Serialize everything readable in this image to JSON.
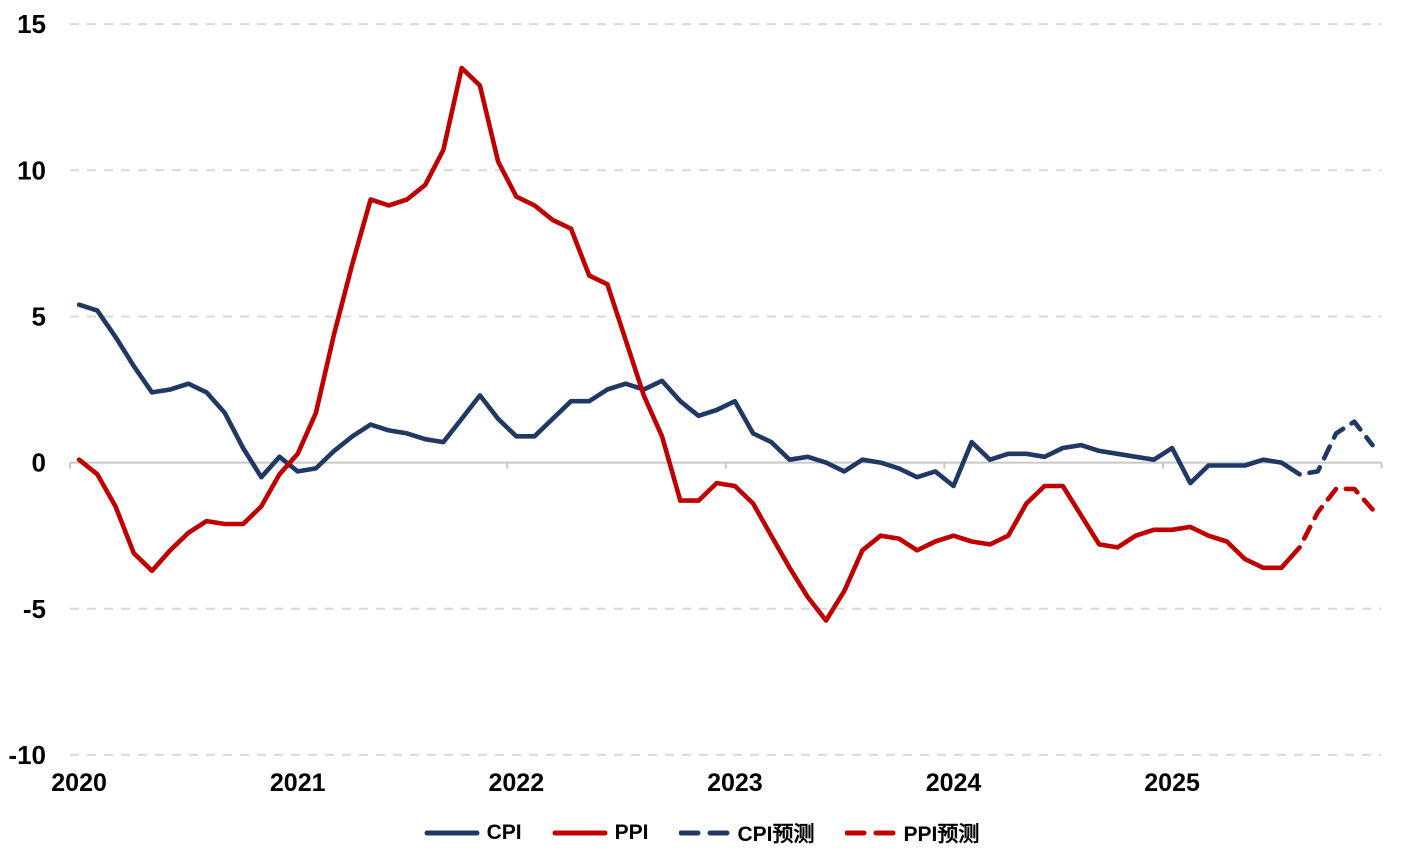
{
  "chart_data": {
    "type": "line",
    "title": "",
    "xlabel": "",
    "ylabel": "",
    "x_start": "2020-01",
    "x_end": "2025-12",
    "total_months": 72,
    "year_labels": [
      "2020",
      "2021",
      "2022",
      "2023",
      "2024",
      "2025"
    ],
    "y_ticks": [
      15,
      10,
      5,
      0,
      -5,
      -10
    ],
    "ylim": [
      -10,
      15
    ],
    "grid": "horizontal-dashed",
    "legend_position": "bottom-center",
    "colors": {
      "cpi": "#1F3864",
      "ppi": "#C00000",
      "gridline": "#D9D9D9",
      "zero_axis": "#C8C8C8",
      "text": "#000000",
      "background": "#FFFFFF"
    },
    "series": [
      {
        "name": "CPI",
        "color": "#1F3864",
        "dash": false,
        "start_index": 0,
        "values": [
          5.4,
          5.2,
          4.3,
          3.3,
          2.4,
          2.5,
          2.7,
          2.4,
          1.7,
          0.5,
          -0.5,
          0.2,
          -0.3,
          -0.2,
          0.4,
          0.9,
          1.3,
          1.1,
          1.0,
          0.8,
          0.7,
          1.5,
          2.3,
          1.5,
          0.9,
          0.9,
          1.5,
          2.1,
          2.1,
          2.5,
          2.7,
          2.5,
          2.8,
          2.1,
          1.6,
          1.8,
          2.1,
          1.0,
          0.7,
          0.1,
          0.2,
          0.0,
          -0.3,
          0.1,
          0.0,
          -0.2,
          -0.5,
          -0.3,
          -0.8,
          0.7,
          0.1,
          0.3,
          0.3,
          0.2,
          0.5,
          0.6,
          0.4,
          0.3,
          0.2,
          0.1,
          0.5,
          -0.7,
          -0.1,
          -0.1,
          -0.1,
          0.1,
          0.0,
          -0.4
        ]
      },
      {
        "name": "PPI",
        "color": "#C00000",
        "dash": false,
        "start_index": 0,
        "values": [
          0.1,
          -0.4,
          -1.5,
          -3.1,
          -3.7,
          -3.0,
          -2.4,
          -2.0,
          -2.1,
          -2.1,
          -1.5,
          -0.4,
          0.3,
          1.7,
          4.4,
          6.8,
          9.0,
          8.8,
          9.0,
          9.5,
          10.7,
          13.5,
          12.9,
          10.3,
          9.1,
          8.8,
          8.3,
          8.0,
          6.4,
          6.1,
          4.2,
          2.3,
          0.9,
          -1.3,
          -1.3,
          -0.7,
          -0.8,
          -1.4,
          -2.5,
          -3.6,
          -4.6,
          -5.4,
          -4.4,
          -3.0,
          -2.5,
          -2.6,
          -3.0,
          -2.7,
          -2.5,
          -2.7,
          -2.8,
          -2.5,
          -1.4,
          -0.8,
          -0.8,
          -1.8,
          -2.8,
          -2.9,
          -2.5,
          -2.3,
          -2.3,
          -2.2,
          -2.5,
          -2.7,
          -3.3,
          -3.6,
          -3.6,
          -2.9
        ]
      },
      {
        "name": "CPI预测",
        "color": "#1F3864",
        "dash": true,
        "start_index": 67,
        "values": [
          -0.4,
          -0.3,
          1.0,
          1.4,
          0.6
        ]
      },
      {
        "name": "PPI预测",
        "color": "#C00000",
        "dash": true,
        "start_index": 67,
        "values": [
          -2.9,
          -1.7,
          -0.9,
          -0.9,
          -1.6
        ]
      }
    ]
  },
  "legend": {
    "items": [
      {
        "label": "CPI",
        "color": "#1F3864",
        "dash": false
      },
      {
        "label": "PPI",
        "color": "#C00000",
        "dash": false
      },
      {
        "label": "CPI预测",
        "color": "#1F3864",
        "dash": true
      },
      {
        "label": "PPI预测",
        "color": "#C00000",
        "dash": true
      }
    ]
  }
}
